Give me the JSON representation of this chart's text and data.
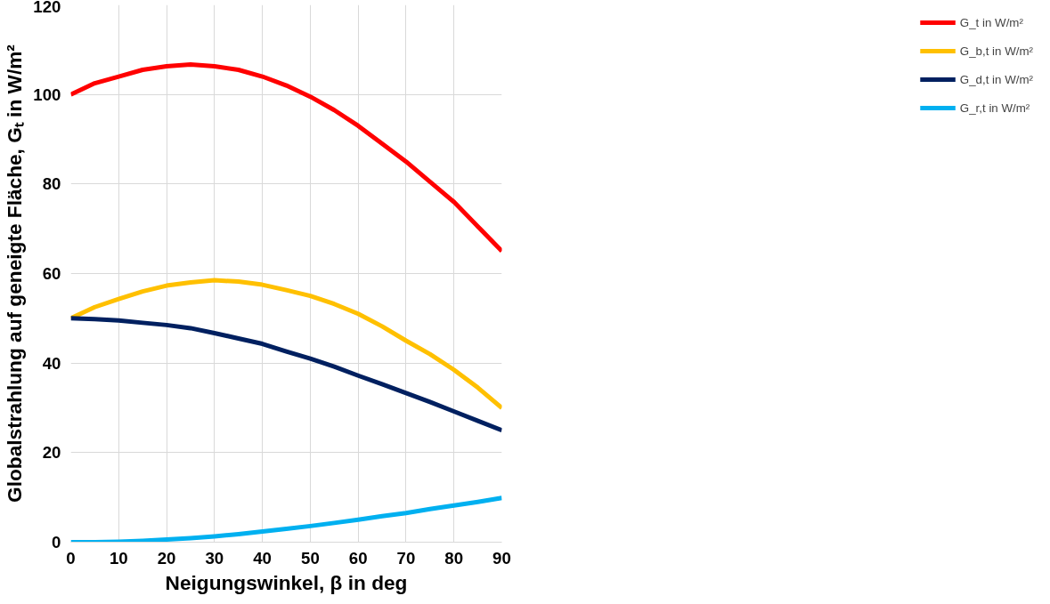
{
  "chart_data": {
    "type": "line",
    "xlabel": "Neigungswinkel, β in deg",
    "ylabel": "Globalstrahlung auf geneigte Fläche, Gₜ in W/m²",
    "x": [
      0,
      5,
      10,
      15,
      20,
      25,
      30,
      35,
      40,
      45,
      50,
      55,
      60,
      65,
      70,
      75,
      80,
      85,
      90
    ],
    "series": [
      {
        "name": "G_t in W/m²",
        "color": "#ff0000",
        "values": [
          100,
          102.5,
          104,
          105.5,
          106.3,
          106.7,
          106.3,
          105.5,
          104,
          102,
          99.5,
          96.5,
          93,
          89,
          85,
          80.5,
          76,
          70.5,
          65
        ]
      },
      {
        "name": "G_b,t in W/m²",
        "color": "#ffc000",
        "values": [
          50,
          52.5,
          54.3,
          56,
          57.3,
          58,
          58.5,
          58.2,
          57.5,
          56.3,
          55,
          53.2,
          51,
          48.2,
          45,
          42,
          38.5,
          34.5,
          30
        ]
      },
      {
        "name": "G_d,t in W/m²",
        "color": "#002060",
        "values": [
          50,
          49.8,
          49.5,
          49,
          48.5,
          47.8,
          46.7,
          45.5,
          44.3,
          42.6,
          41,
          39.2,
          37.2,
          35.3,
          33.3,
          31.3,
          29.2,
          27.1,
          25
        ]
      },
      {
        "name": "G_r,t in W/m²",
        "color": "#00b0f0",
        "values": [
          0,
          0,
          0.1,
          0.3,
          0.6,
          0.9,
          1.3,
          1.8,
          2.4,
          3,
          3.6,
          4.3,
          5,
          5.8,
          6.5,
          7.4,
          8.2,
          9,
          9.9
        ]
      }
    ],
    "xlim": [
      0,
      90
    ],
    "ylim": [
      0,
      120
    ],
    "xticks": [
      0,
      10,
      20,
      30,
      40,
      50,
      60,
      70,
      80,
      90
    ],
    "yticks": [
      0,
      20,
      40,
      60,
      80,
      100,
      120
    ],
    "grid": true,
    "legend": "right",
    "marker": "none",
    "line_style": "solid"
  }
}
